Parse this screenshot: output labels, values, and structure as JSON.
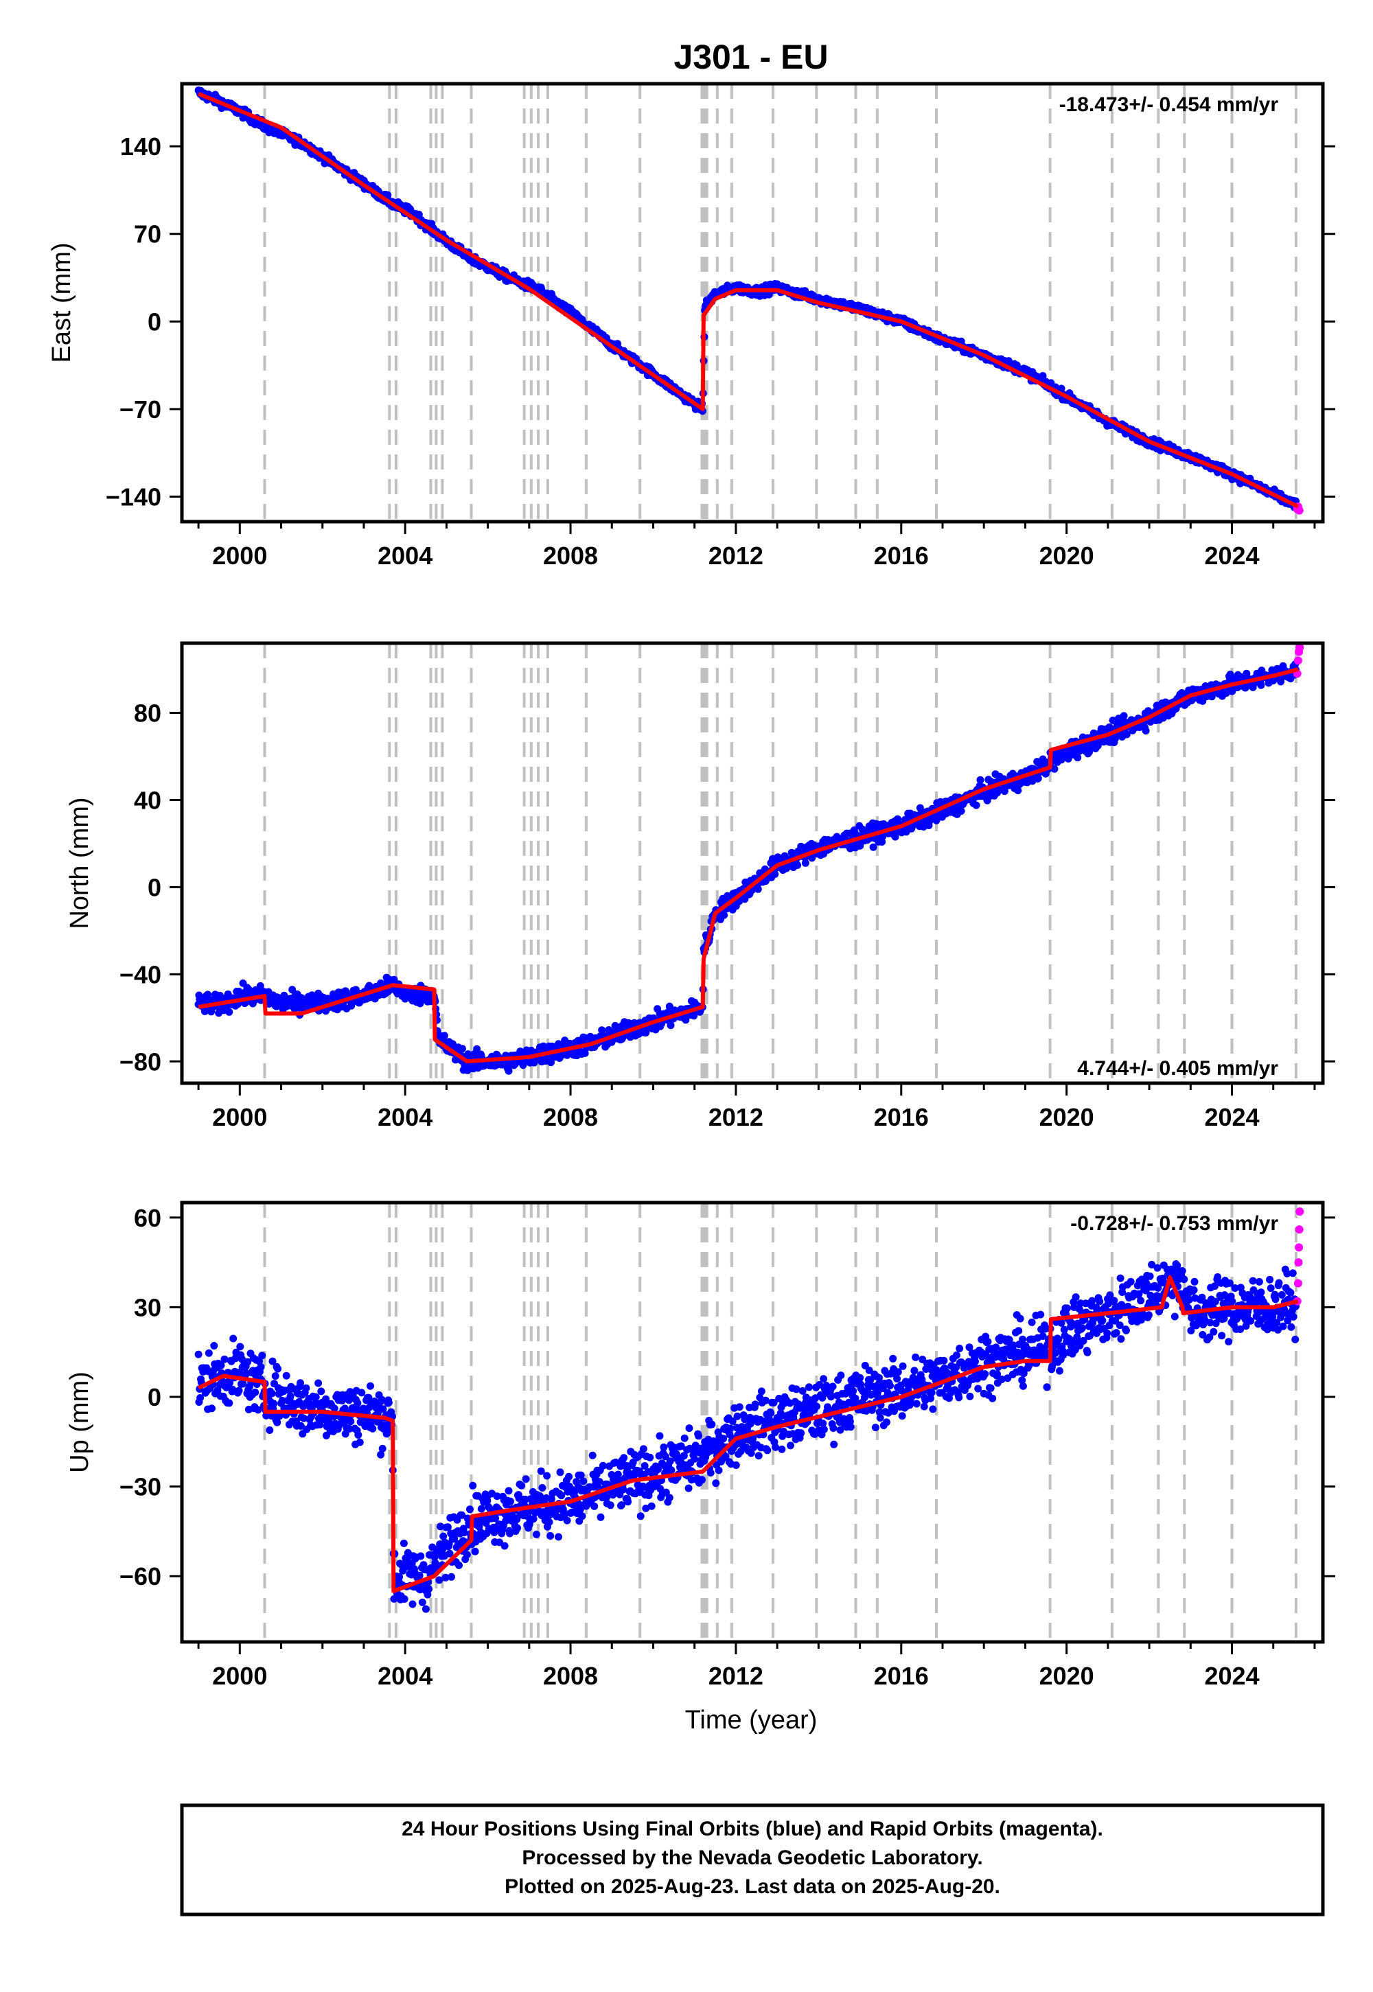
{
  "title": "J301 - EU",
  "xlabel": "Time (year)",
  "footer": {
    "lines": [
      "24 Hour Positions Using Final Orbits (blue) and Rapid Orbits (magenta).",
      "Processed by the Nevada Geodetic Laboratory.",
      "Plotted on 2025-Aug-23. Last data on 2025-Aug-20."
    ]
  },
  "colors": {
    "final_orbits": "#0000ff",
    "rapid_orbits": "#ff00ff",
    "model": "#ff0000",
    "step_lines": "#c0c0c0",
    "frame": "#000000"
  },
  "chart_data": [
    {
      "type": "scatter",
      "panel": "east",
      "ylabel": "East (mm)",
      "rate": "-18.473+/- 0.454 mm/yr",
      "rate_position": "top-right",
      "xlim": [
        1998.6,
        2026.2
      ],
      "ylim": [
        -160,
        190
      ],
      "xticks": [
        2000,
        2004,
        2008,
        2012,
        2016,
        2020,
        2024
      ],
      "yticks": [
        -140,
        -70,
        0,
        70,
        140
      ],
      "ytick_labels": [
        "−140",
        "−70",
        "0",
        "70",
        "140"
      ],
      "grid": false,
      "noise_mm": 2.5,
      "series": [
        {
          "role": "final_orbits",
          "x": [
            1999.0,
            1999.5,
            2000.0,
            2000.6,
            2001.5,
            2002.5,
            2003.0,
            2003.7,
            2004.2,
            2004.7,
            2005.5,
            2006.5,
            2007.2,
            2008.0,
            2009.0,
            2010.0,
            2010.8,
            2011.2,
            2011.25,
            2011.5,
            2012.0,
            2012.5,
            2013.0,
            2013.5,
            2014.0,
            2015.0,
            2016.0,
            2017.0,
            2018.0,
            2019.0,
            2020.0,
            2021.0,
            2022.0,
            2023.0,
            2024.0,
            2025.0,
            2025.55
          ],
          "y": [
            183,
            176,
            168,
            156,
            143,
            121,
            110,
            94,
            86,
            72,
            52,
            35,
            26,
            7,
            -19,
            -42,
            -61,
            -70,
            12,
            22,
            27,
            24,
            27,
            22,
            18,
            10,
            0,
            -15,
            -27,
            -40,
            -60,
            -80,
            -96,
            -108,
            -122,
            -138,
            -147
          ]
        },
        {
          "role": "rapid_orbits",
          "x": [
            2025.58,
            2025.6,
            2025.63
          ],
          "y": [
            -150,
            -148,
            -151
          ]
        },
        {
          "role": "model",
          "x": [
            1999.0,
            2001.0,
            2003.0,
            2005.0,
            2007.0,
            2009.0,
            2011.2,
            2011.22,
            2011.5,
            2012.0,
            2013.0,
            2014.0,
            2016.0,
            2018.0,
            2020.0,
            2022.0,
            2024.0,
            2025.6
          ],
          "y": [
            182,
            155,
            109,
            65,
            26,
            -20,
            -70,
            5,
            18,
            25,
            25,
            15,
            0,
            -27,
            -60,
            -96,
            -122,
            -148
          ]
        }
      ]
    },
    {
      "type": "scatter",
      "panel": "north",
      "ylabel": "North (mm)",
      "rate": "4.744+/- 0.405 mm/yr",
      "rate_position": "bottom-right",
      "xlim": [
        1998.6,
        2026.2
      ],
      "ylim": [
        -90,
        112
      ],
      "xticks": [
        2000,
        2004,
        2008,
        2012,
        2016,
        2020,
        2024
      ],
      "yticks": [
        -80,
        -40,
        0,
        40,
        80
      ],
      "ytick_labels": [
        "−80",
        "−40",
        "0",
        "40",
        "80"
      ],
      "grid": false,
      "noise_mm": 3.0,
      "series": [
        {
          "role": "final_orbits",
          "x": [
            1999.0,
            1999.5,
            2000.0,
            2000.6,
            2001.0,
            2002.0,
            2003.0,
            2003.7,
            2004.2,
            2004.7,
            2004.8,
            2005.5,
            2006.5,
            2007.5,
            2008.5,
            2009.5,
            2010.5,
            2011.2,
            2011.22,
            2011.5,
            2012.0,
            2013.0,
            2014.0,
            2015.0,
            2016.0,
            2017.0,
            2018.0,
            2019.0,
            2020.0,
            2021.0,
            2022.0,
            2023.0,
            2024.0,
            2025.0,
            2025.55
          ],
          "y": [
            -53,
            -54,
            -50,
            -50,
            -53,
            -53,
            -50,
            -45,
            -50,
            -48,
            -70,
            -80,
            -80,
            -76,
            -72,
            -65,
            -59,
            -55,
            -30,
            -12,
            -5,
            10,
            18,
            23,
            28,
            35,
            44,
            50,
            62,
            70,
            78,
            88,
            93,
            97,
            100
          ]
        },
        {
          "role": "rapid_orbits",
          "x": [
            2025.58,
            2025.6,
            2025.62,
            2025.64
          ],
          "y": [
            98,
            104,
            108,
            110
          ]
        },
        {
          "role": "model",
          "x": [
            1999.0,
            2000.6,
            2000.62,
            2001.5,
            2003.7,
            2004.7,
            2004.72,
            2005.5,
            2007.0,
            2008.5,
            2010.0,
            2011.2,
            2011.22,
            2011.5,
            2012.0,
            2013.0,
            2014.0,
            2016.0,
            2018.0,
            2019.6,
            2019.62,
            2021.0,
            2022.0,
            2023.0,
            2024.0,
            2025.0,
            2025.6
          ],
          "y": [
            -55,
            -50,
            -58,
            -58,
            -45,
            -47,
            -70,
            -80,
            -78,
            -72,
            -62,
            -55,
            -33,
            -12,
            -5,
            10,
            17,
            28,
            45,
            55,
            63,
            70,
            78,
            88,
            93,
            97,
            100
          ]
        }
      ]
    },
    {
      "type": "scatter",
      "panel": "up",
      "ylabel": "Up (mm)",
      "rate": "-0.728+/- 0.753 mm/yr",
      "rate_position": "top-right",
      "xlim": [
        1998.6,
        2026.2
      ],
      "ylim": [
        -82,
        65
      ],
      "xticks": [
        2000,
        2004,
        2008,
        2012,
        2016,
        2020,
        2024
      ],
      "yticks": [
        -60,
        -30,
        0,
        30,
        60
      ],
      "ytick_labels": [
        "−60",
        "−30",
        "0",
        "30",
        "60"
      ],
      "grid": false,
      "noise_mm": 7.0,
      "series": [
        {
          "role": "final_orbits",
          "x": [
            1999.0,
            2000.0,
            2000.6,
            2001.5,
            2002.5,
            2003.5,
            2003.7,
            2003.72,
            2004.5,
            2005.5,
            2006.5,
            2007.5,
            2008.5,
            2009.5,
            2010.5,
            2011.2,
            2012.0,
            2013.0,
            2014.0,
            2015.0,
            2016.0,
            2017.0,
            2018.0,
            2019.5,
            2020.0,
            2021.0,
            2022.0,
            2022.8,
            2023.0,
            2024.0,
            2025.0,
            2025.55
          ],
          "y": [
            5,
            8,
            2,
            -3,
            -5,
            -6,
            -8,
            -60,
            -60,
            -42,
            -38,
            -36,
            -33,
            -28,
            -24,
            -20,
            -12,
            -8,
            -5,
            0,
            2,
            6,
            12,
            16,
            22,
            27,
            35,
            40,
            28,
            30,
            30,
            32
          ]
        },
        {
          "role": "rapid_orbits",
          "x": [
            2025.58,
            2025.6,
            2025.61,
            2025.62,
            2025.63,
            2025.64
          ],
          "y": [
            32,
            38,
            45,
            50,
            56,
            62
          ]
        },
        {
          "role": "model",
          "x": [
            1999.0,
            1999.6,
            2000.6,
            2000.62,
            2002.0,
            2003.5,
            2003.7,
            2003.72,
            2004.7,
            2005.6,
            2005.62,
            2006.5,
            2008.0,
            2009.5,
            2011.2,
            2012.0,
            2013.0,
            2014.5,
            2016.0,
            2017.0,
            2018.0,
            2019.0,
            2019.6,
            2019.62,
            2021.0,
            2022.3,
            2022.5,
            2022.8,
            2022.82,
            2024.0,
            2025.0,
            2025.6
          ],
          "y": [
            3,
            7,
            5,
            -5,
            -5,
            -7,
            -8,
            -65,
            -60,
            -48,
            -40,
            -38,
            -35,
            -28,
            -25,
            -14,
            -10,
            -5,
            0,
            5,
            10,
            12,
            12,
            26,
            28,
            30,
            40,
            30,
            28,
            30,
            30,
            32
          ]
        }
      ]
    }
  ],
  "step_epochs": [
    2000.6,
    2003.62,
    2003.78,
    2004.62,
    2004.75,
    2004.9,
    2005.6,
    2006.88,
    2007.05,
    2007.22,
    2007.45,
    2008.38,
    2009.68,
    2011.18,
    2011.24,
    2011.3,
    2011.55,
    2011.9,
    2012.9,
    2013.95,
    2014.9,
    2015.42,
    2016.85,
    2019.6,
    2021.1,
    2022.22,
    2022.85,
    2024.0,
    2025.55
  ]
}
